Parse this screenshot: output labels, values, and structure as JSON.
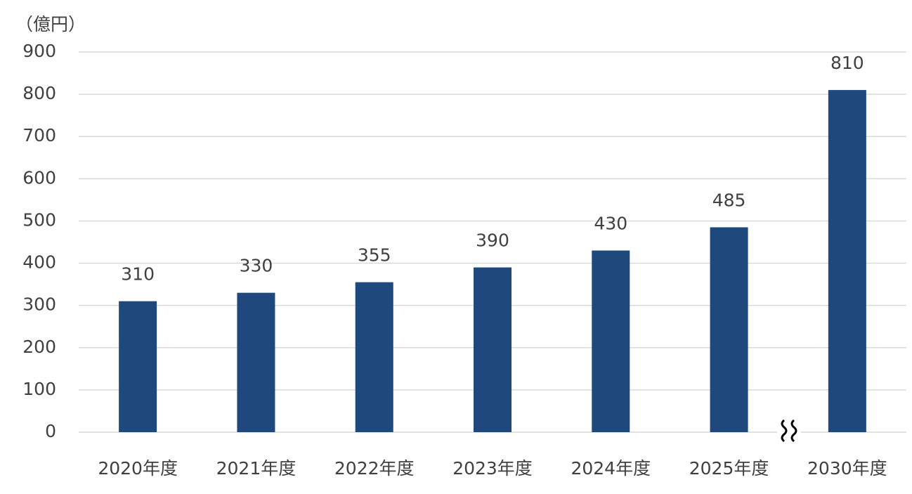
{
  "chart_data": {
    "type": "bar",
    "unit_label": "（億円）",
    "categories": [
      "2020年度",
      "2021年度",
      "2022年度",
      "2023年度",
      "2024年度",
      "2025年度",
      "2030年度"
    ],
    "values": [
      310,
      330,
      355,
      390,
      430,
      485,
      810
    ],
    "color": "#1f497d",
    "ylim": [
      0,
      900
    ],
    "yticks": [
      0,
      100,
      200,
      300,
      400,
      500,
      600,
      700,
      800,
      900
    ],
    "grid": true
  }
}
